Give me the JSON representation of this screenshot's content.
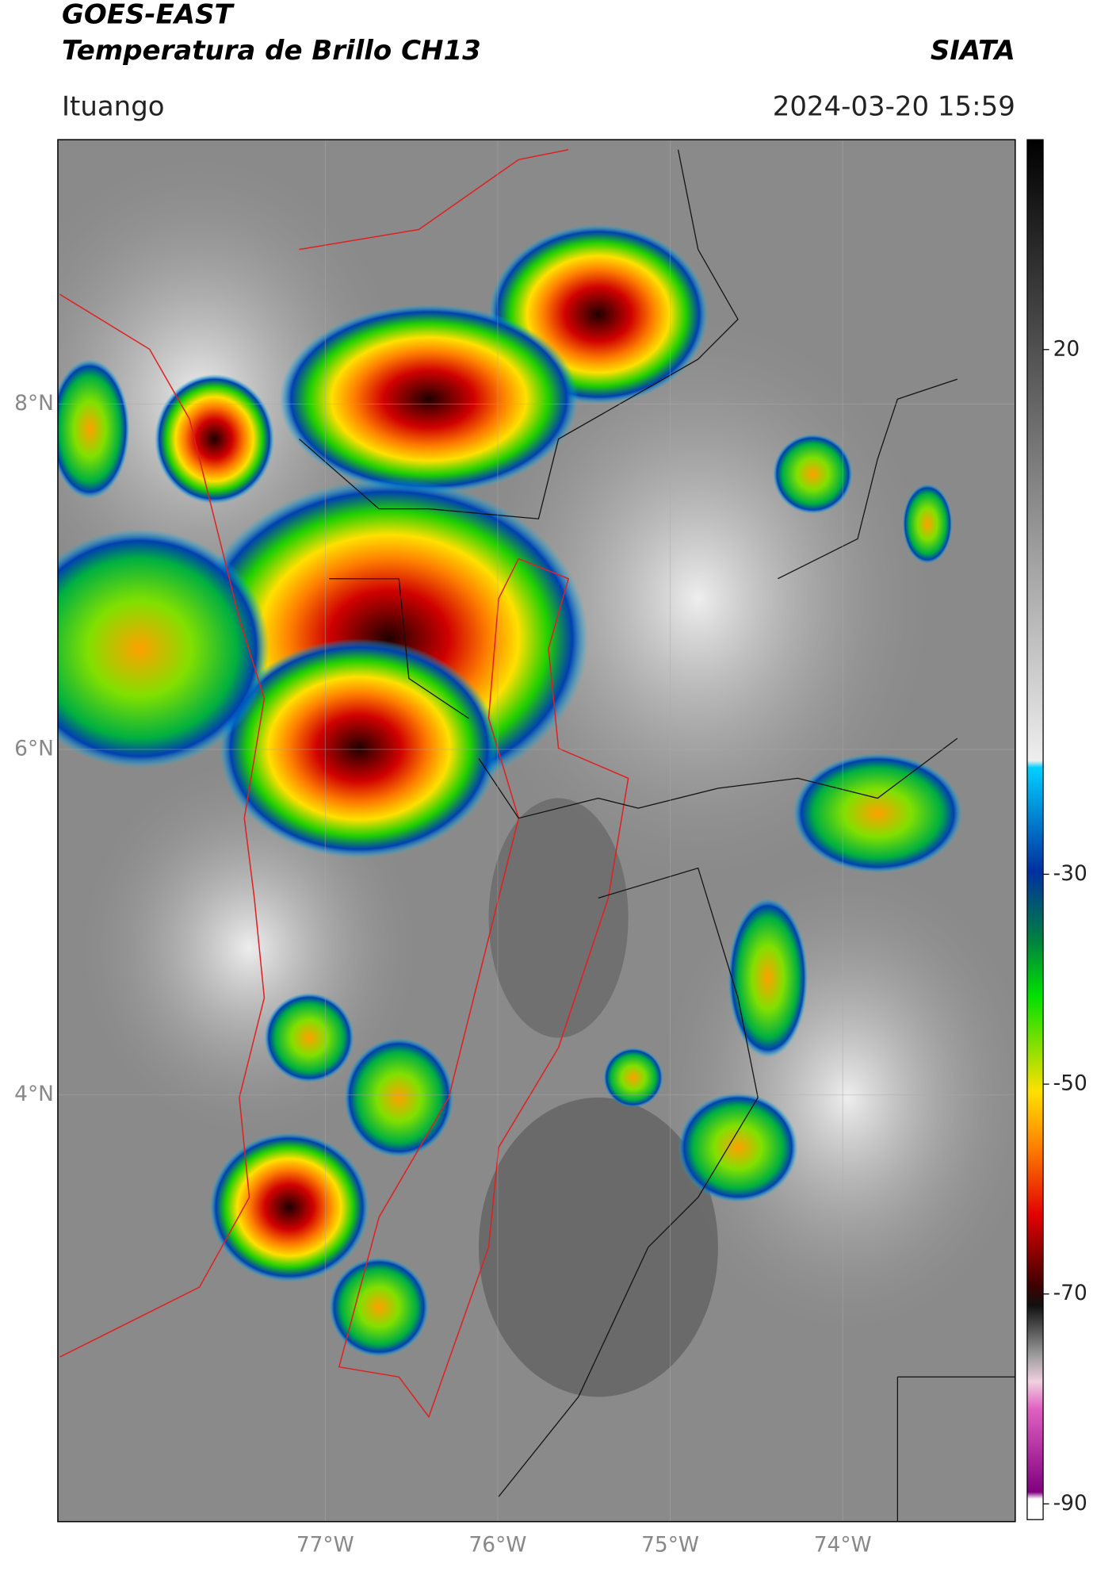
{
  "header": {
    "title": "GOES-EAST",
    "subtitle": "Temperatura de Brillo CH13",
    "source": "SIATA",
    "region": "Ituango",
    "datetime": "2024-03-20 15:59"
  },
  "map": {
    "lonlim": [
      -78.55,
      -73.0
    ],
    "latlim": [
      1.53,
      9.53
    ],
    "lon_ticks": [
      {
        "value": -77,
        "label": "77°W"
      },
      {
        "value": -76,
        "label": "76°W"
      },
      {
        "value": -75,
        "label": "75°W"
      },
      {
        "value": -74,
        "label": "74°W"
      }
    ],
    "lat_ticks": [
      {
        "value": 8,
        "label": "8°N"
      },
      {
        "value": 6,
        "label": "6°N"
      },
      {
        "value": 4,
        "label": "4°N"
      }
    ],
    "grid": true
  },
  "colorbar": {
    "ylim": [
      -91.5,
      40
    ],
    "yticks": [
      20,
      -30,
      -50,
      -70,
      -90
    ]
  }
}
